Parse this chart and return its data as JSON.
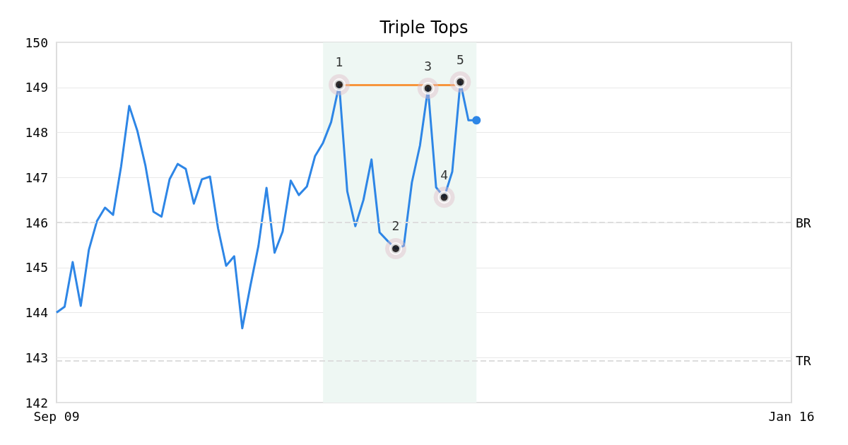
{
  "chart_data": {
    "type": "line",
    "title": "Triple Tops",
    "categories": [
      "Sep 09",
      null,
      null,
      null,
      null,
      null,
      null,
      null,
      null,
      null,
      null,
      null,
      null,
      null,
      null,
      null,
      null,
      null,
      null,
      null,
      null,
      null,
      null,
      null,
      null,
      null,
      null,
      null,
      null,
      null,
      null,
      null,
      null,
      null,
      null,
      null,
      null,
      null,
      null,
      null,
      null,
      null,
      null,
      null,
      null,
      null,
      null,
      null,
      null,
      null,
      null,
      null,
      null,
      null,
      null,
      null,
      null,
      null,
      null,
      null,
      null,
      null,
      null,
      null,
      null,
      null,
      null,
      null,
      null,
      null,
      null,
      null,
      null,
      null,
      null,
      null,
      null,
      null,
      null,
      null,
      null,
      null,
      null,
      null,
      null,
      null,
      null,
      null,
      null,
      null,
      null,
      "Jan 16"
    ],
    "ylim": [
      142,
      150
    ],
    "yticks": [
      142,
      143,
      144,
      145,
      146,
      147,
      148,
      149,
      150
    ],
    "series": [
      {
        "color": "#2e86e6",
        "values": [
          144.0,
          144.13,
          145.12,
          144.15,
          145.39,
          146.03,
          146.33,
          146.17,
          147.25,
          148.59,
          148.04,
          147.27,
          146.24,
          146.13,
          146.96,
          147.3,
          147.19,
          146.42,
          146.96,
          147.02,
          145.87,
          145.04,
          145.25,
          143.65,
          144.59,
          145.48,
          146.77,
          145.33,
          145.8,
          146.93,
          146.61,
          146.8,
          147.47,
          147.77,
          148.23,
          149.06,
          146.69,
          145.92,
          146.5,
          147.4,
          145.78,
          145.59,
          145.42,
          145.48,
          146.89,
          147.71,
          148.98,
          146.78,
          146.56,
          147.13,
          149.12,
          148.27,
          148.27,
          null,
          null,
          null,
          null,
          null,
          null,
          null,
          null,
          null,
          null,
          null,
          null,
          null,
          null,
          null,
          null,
          null,
          null,
          null,
          null,
          null,
          null,
          null,
          null,
          null,
          null,
          null,
          null,
          null,
          null,
          null,
          null,
          null,
          null,
          null,
          null,
          null,
          null,
          null
        ]
      },
      {
        "color": "#f7963c",
        "values": [
          null,
          null,
          null,
          null,
          null,
          null,
          null,
          null,
          null,
          null,
          null,
          null,
          null,
          null,
          null,
          null,
          null,
          null,
          null,
          null,
          null,
          null,
          null,
          null,
          null,
          null,
          null,
          null,
          null,
          null,
          null,
          null,
          null,
          null,
          null,
          149.05,
          null,
          null,
          null,
          null,
          null,
          null,
          null,
          null,
          null,
          null,
          null,
          null,
          null,
          null,
          149.05,
          null,
          null,
          null,
          null,
          null,
          null,
          null,
          null,
          null,
          null,
          null,
          null,
          null,
          null,
          null,
          null,
          null,
          null,
          null,
          null,
          null,
          null,
          null,
          null,
          null,
          null,
          null,
          null,
          null,
          null,
          null,
          null,
          null,
          null,
          null,
          null,
          null,
          null,
          null,
          null,
          null
        ]
      },
      {
        "type": "scatter",
        "color": "#000000",
        "values": [
          null,
          null,
          null,
          null,
          null,
          null,
          null,
          null,
          null,
          null,
          null,
          null,
          null,
          null,
          null,
          null,
          null,
          null,
          null,
          null,
          null,
          null,
          null,
          null,
          null,
          null,
          null,
          null,
          null,
          null,
          null,
          null,
          null,
          null,
          null,
          149.06,
          null,
          null,
          null,
          null,
          null,
          null,
          145.42,
          null,
          null,
          null,
          148.98,
          null,
          146.56,
          null,
          149.12,
          null,
          null,
          null,
          null,
          null,
          null,
          null,
          null,
          null,
          null,
          null,
          null,
          null,
          null,
          null,
          null,
          null,
          null,
          null,
          null,
          null,
          null,
          null,
          null,
          null,
          null,
          null,
          null,
          null,
          null,
          null,
          null,
          null,
          null,
          null,
          null,
          null,
          null,
          null,
          null,
          null
        ]
      }
    ],
    "annotations": [
      "1",
      "2",
      "3",
      "4",
      "5"
    ],
    "ref_lines": [
      {
        "axis": "y",
        "value": 146,
        "label": "BR",
        "color": "#dddddd",
        "line_style": "dashed"
      },
      {
        "axis": "y",
        "value": 142.93,
        "label": "TR",
        "color": "#dddddd",
        "line_style": "dashed"
      }
    ],
    "grid": "y"
  }
}
